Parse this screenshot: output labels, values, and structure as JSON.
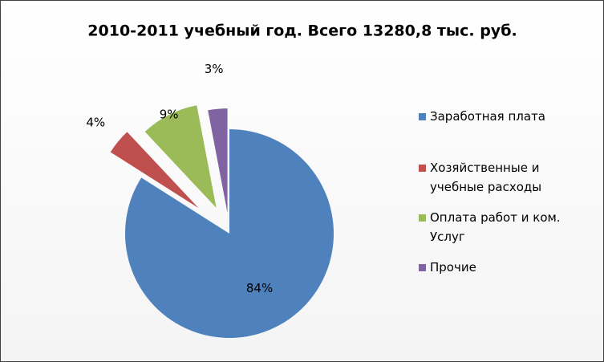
{
  "chart_data": {
    "type": "pie",
    "title": "2010-2011 учебный год. Всего 13280,8 тыс. руб.",
    "labels": [
      "Заработная плата",
      "Хозяйственные и учебные расходы",
      "Оплата работ и ком. Услуг",
      "Прочие"
    ],
    "values": [
      84,
      4,
      9,
      3
    ],
    "value_labels": [
      "84%",
      "4%",
      "9%",
      "3%"
    ],
    "colors": [
      "#4f81bd",
      "#c0504d",
      "#9bbb59",
      "#8064a2"
    ],
    "legend": "right"
  }
}
